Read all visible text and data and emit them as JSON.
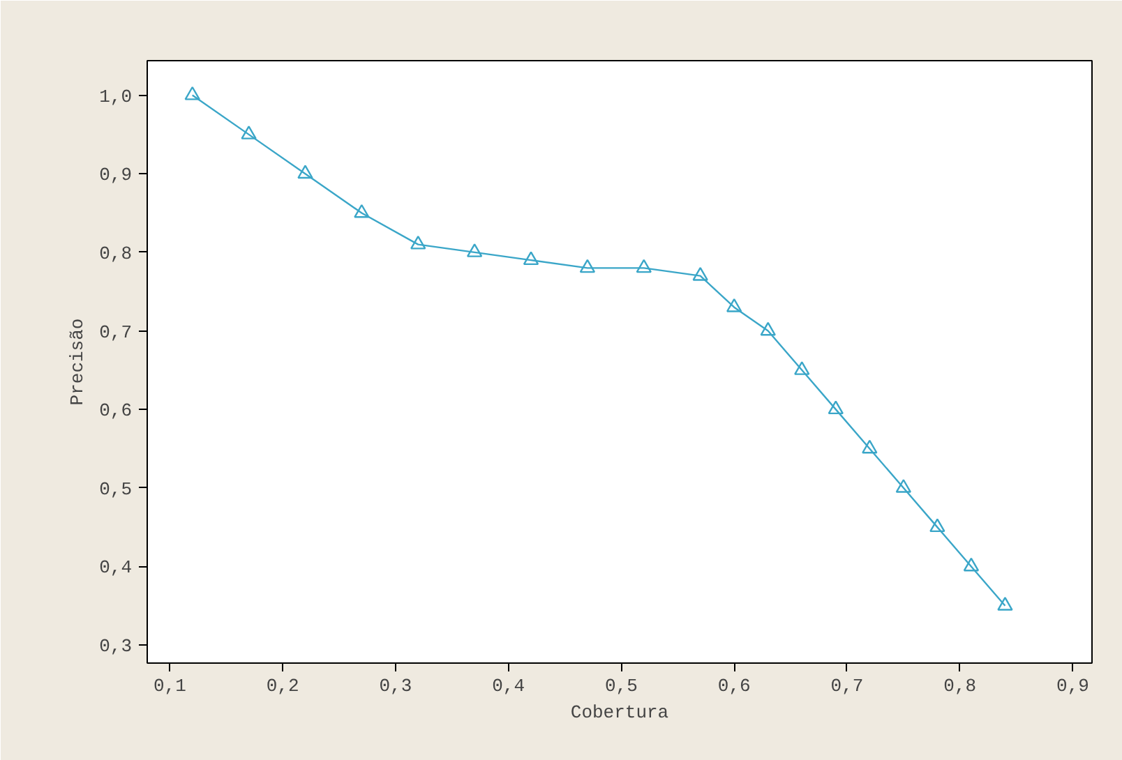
{
  "chart_data": {
    "type": "line",
    "xlabel": "Cobertura",
    "ylabel": "Precisão",
    "x": [
      0.12,
      0.17,
      0.22,
      0.27,
      0.32,
      0.37,
      0.42,
      0.47,
      0.52,
      0.57,
      0.6,
      0.63,
      0.66,
      0.69,
      0.72,
      0.75,
      0.78,
      0.81,
      0.84
    ],
    "series": [
      {
        "color": "#3aa6c8",
        "values": [
          1.0,
          0.95,
          0.9,
          0.85,
          0.81,
          0.8,
          0.79,
          0.78,
          0.78,
          0.77,
          0.73,
          0.7,
          0.65,
          0.6,
          0.55,
          0.5,
          0.45,
          0.4,
          0.35
        ]
      }
    ],
    "xlim": [
      0.08,
      0.917
    ],
    "ylim": [
      0.277,
      1.044
    ],
    "xticks": [
      {
        "value": 0.1,
        "label": "0,1"
      },
      {
        "value": 0.2,
        "label": "0,2"
      },
      {
        "value": 0.3,
        "label": "0,3"
      },
      {
        "value": 0.4,
        "label": "0,4"
      },
      {
        "value": 0.5,
        "label": "0,5"
      },
      {
        "value": 0.6,
        "label": "0,6"
      },
      {
        "value": 0.7,
        "label": "0,7"
      },
      {
        "value": 0.8,
        "label": "0,8"
      },
      {
        "value": 0.9,
        "label": "0,9"
      }
    ],
    "yticks": [
      {
        "value": 0.3,
        "label": "0,3"
      },
      {
        "value": 0.4,
        "label": "0,4"
      },
      {
        "value": 0.5,
        "label": "0,5"
      },
      {
        "value": 0.6,
        "label": "0,6"
      },
      {
        "value": 0.7,
        "label": "0,7"
      },
      {
        "value": 0.8,
        "label": "0,8"
      },
      {
        "value": 0.9,
        "label": "0,9"
      },
      {
        "value": 1.0,
        "label": "1,0"
      }
    ],
    "marker": "triangle",
    "line_style": "solid",
    "grid": false
  }
}
